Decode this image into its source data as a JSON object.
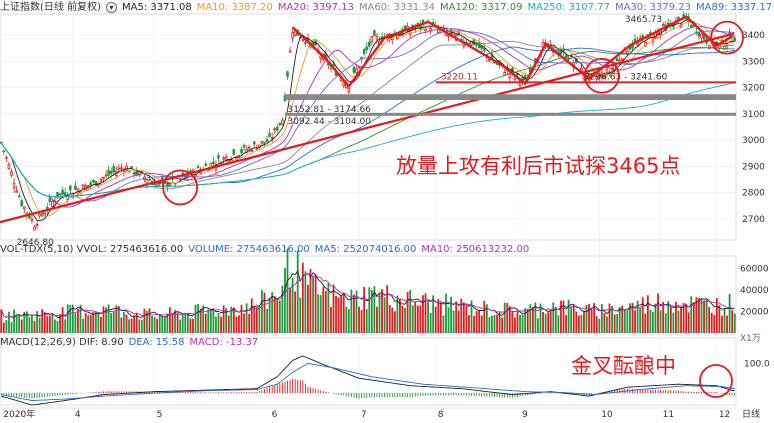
{
  "colors": {
    "up": "#e8191c",
    "down": "#1a9c3a",
    "ma5": "#222222",
    "ma10": "#e89b2c",
    "ma20": "#b530b5",
    "ma60": "#8a8a8a",
    "ma120": "#2f8f2f",
    "ma250": "#19b0c8",
    "ma30": "#6a6ad0",
    "ma89": "#2b6bd6",
    "annot": "#e8191c",
    "gray_band": "#888888"
  },
  "header": {
    "index_name": "上证指数(日线 前复权)",
    "ma_items": [
      {
        "label": "MA5: 3371.08",
        "color": "#222222"
      },
      {
        "label": "MA10: 3387.20",
        "color": "#e89b2c"
      },
      {
        "label": "MA20: 3397.13",
        "color": "#b530b5"
      },
      {
        "label": "MA60: 3331.34",
        "color": "#8a8a8a"
      },
      {
        "label": "MA120: 3317.09",
        "color": "#2f8f2f"
      },
      {
        "label": "MA250: 3107.77",
        "color": "#19b0c8"
      },
      {
        "label": "MA30: 3379.23",
        "color": "#6a6ad0"
      },
      {
        "label": "MA89: 3337.17",
        "color": "#2b6bd6"
      }
    ]
  },
  "vol_header": [
    {
      "label": "VOL-TDX(5,10)  VVOL: 275463616.00",
      "color": "#333333"
    },
    {
      "label": "VOLUME: 275463616.00",
      "color": "#2b6bd6"
    },
    {
      "label": "MA5: 252074016.00",
      "color": "#2b6bd6"
    },
    {
      "label": "MA10: 250613232.00",
      "color": "#b530b5"
    }
  ],
  "macd_header": [
    {
      "label": "MACD(12,26,9)  DIF: 8.90",
      "color": "#333333"
    },
    {
      "label": "DEA: 15.58",
      "color": "#2b6bd6"
    },
    {
      "label": "MACD: -13.37",
      "color": "#b530b5"
    }
  ],
  "annotations": {
    "main_text": "放量上攻有利后市试探3465点",
    "macd_text": "金叉酝酿中",
    "high_label": "3465.73",
    "low_label": "2646.80",
    "gap1": "3152.81 - 3174.66",
    "gap2": "3092.44 - 3104.00",
    "support1": "3220.11",
    "support2": "3236.63 - 3241.60"
  },
  "chart_data": [
    {
      "type": "candlestick",
      "title": "上证指数(日线 前复权)",
      "y_ticks": [
        2700,
        2800,
        2900,
        3000,
        3100,
        3200,
        3300,
        3400
      ],
      "ylim": [
        2620,
        3480
      ],
      "x_month_labels": [
        "2020年",
        "4",
        "5",
        "6",
        "7",
        "8",
        "9",
        "10",
        "11",
        "12"
      ],
      "overlay_lines": {
        "gap_band_1": [
          3152.81,
          3174.66
        ],
        "gap_band_2": [
          3092.44,
          3104.0
        ],
        "support": 3220.11,
        "high": 3465.73,
        "low": 2646.8
      },
      "segments": [
        [
          0,
          2990
        ],
        [
          8,
          2760
        ],
        [
          13,
          2680
        ],
        [
          22,
          2790
        ],
        [
          35,
          2830
        ],
        [
          48,
          2900
        ],
        [
          62,
          2830
        ],
        [
          68,
          2840
        ],
        [
          80,
          2900
        ],
        [
          92,
          2950
        ],
        [
          105,
          3000
        ],
        [
          110,
          3080
        ],
        [
          114,
          3420
        ],
        [
          122,
          3360
        ],
        [
          127,
          3300
        ],
        [
          136,
          3210
        ],
        [
          145,
          3380
        ],
        [
          160,
          3420
        ],
        [
          167,
          3440
        ],
        [
          175,
          3400
        ],
        [
          185,
          3370
        ],
        [
          195,
          3280
        ],
        [
          205,
          3220
        ],
        [
          212,
          3360
        ],
        [
          222,
          3320
        ],
        [
          230,
          3230
        ],
        [
          238,
          3260
        ],
        [
          245,
          3350
        ],
        [
          255,
          3400
        ],
        [
          262,
          3440
        ],
        [
          268,
          3460
        ],
        [
          276,
          3380
        ],
        [
          281,
          3360
        ],
        [
          286,
          3390
        ]
      ]
    },
    {
      "type": "bar",
      "title": "VOL-TDX(5,10)",
      "y_ticks": [
        20000,
        40000,
        60000
      ],
      "ylim": [
        0,
        70000
      ],
      "unit": "X1万",
      "segments": [
        [
          0,
          16000
        ],
        [
          20,
          18000
        ],
        [
          40,
          22000
        ],
        [
          60,
          16000
        ],
        [
          80,
          20000
        ],
        [
          100,
          26000
        ],
        [
          110,
          40000
        ],
        [
          113,
          68000
        ],
        [
          118,
          48000
        ],
        [
          125,
          38000
        ],
        [
          135,
          30000
        ],
        [
          145,
          36000
        ],
        [
          160,
          30000
        ],
        [
          175,
          26000
        ],
        [
          190,
          22000
        ],
        [
          205,
          20000
        ],
        [
          215,
          26000
        ],
        [
          230,
          20000
        ],
        [
          245,
          24000
        ],
        [
          260,
          30000
        ],
        [
          275,
          26000
        ],
        [
          286,
          27000
        ]
      ]
    },
    {
      "type": "line",
      "title": "MACD(12,26,9)",
      "y_ticks": [
        100
      ],
      "ylim": [
        -40,
        145
      ],
      "series": [
        {
          "name": "DIF",
          "segments": [
            [
              0,
              -10
            ],
            [
              12,
              -40
            ],
            [
              25,
              -25
            ],
            [
              40,
              -5
            ],
            [
              60,
              5
            ],
            [
              80,
              10
            ],
            [
              100,
              15
            ],
            [
              108,
              55
            ],
            [
              114,
              110
            ],
            [
              118,
              125
            ],
            [
              125,
              100
            ],
            [
              140,
              50
            ],
            [
              160,
              25
            ],
            [
              180,
              15
            ],
            [
              200,
              -5
            ],
            [
              215,
              5
            ],
            [
              230,
              -10
            ],
            [
              245,
              20
            ],
            [
              265,
              30
            ],
            [
              280,
              25
            ],
            [
              286,
              8.9
            ]
          ]
        },
        {
          "name": "DEA",
          "segments": [
            [
              0,
              -5
            ],
            [
              12,
              -25
            ],
            [
              25,
              -20
            ],
            [
              40,
              -10
            ],
            [
              60,
              0
            ],
            [
              80,
              8
            ],
            [
              100,
              12
            ],
            [
              108,
              30
            ],
            [
              114,
              70
            ],
            [
              120,
              100
            ],
            [
              130,
              85
            ],
            [
              145,
              55
            ],
            [
              165,
              30
            ],
            [
              185,
              18
            ],
            [
              205,
              5
            ],
            [
              220,
              2
            ],
            [
              232,
              -5
            ],
            [
              250,
              12
            ],
            [
              268,
              25
            ],
            [
              282,
              22
            ],
            [
              286,
              15.58
            ]
          ]
        }
      ]
    }
  ],
  "x_axis_right_label": "日线"
}
